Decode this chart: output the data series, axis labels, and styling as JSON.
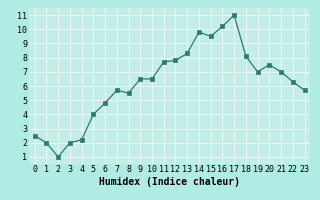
{
  "x": [
    0,
    1,
    2,
    3,
    4,
    5,
    6,
    7,
    8,
    9,
    10,
    11,
    12,
    13,
    14,
    15,
    16,
    17,
    18,
    19,
    20,
    21,
    22,
    23
  ],
  "y": [
    2.5,
    2.0,
    1.0,
    2.0,
    2.2,
    4.0,
    4.8,
    5.7,
    5.5,
    6.5,
    6.5,
    7.7,
    7.8,
    8.3,
    9.8,
    9.5,
    10.2,
    11.0,
    8.1,
    7.0,
    7.5,
    7.0,
    6.3,
    5.7
  ],
  "xlabel": "Humidex (Indice chaleur)",
  "xlim": [
    -0.5,
    23.5
  ],
  "ylim": [
    0.5,
    11.5
  ],
  "yticks": [
    1,
    2,
    3,
    4,
    5,
    6,
    7,
    8,
    9,
    10,
    11
  ],
  "xticks": [
    0,
    1,
    2,
    3,
    4,
    5,
    6,
    7,
    8,
    9,
    10,
    11,
    12,
    13,
    14,
    15,
    16,
    17,
    18,
    19,
    20,
    21,
    22,
    23
  ],
  "line_color": "#2d7a6e",
  "bg_color": "#b0ece4",
  "grid_color": "#e8f8f5",
  "plot_bg": "#c5ede8",
  "tick_font_size": 6.0,
  "xlabel_font_size": 7.0
}
